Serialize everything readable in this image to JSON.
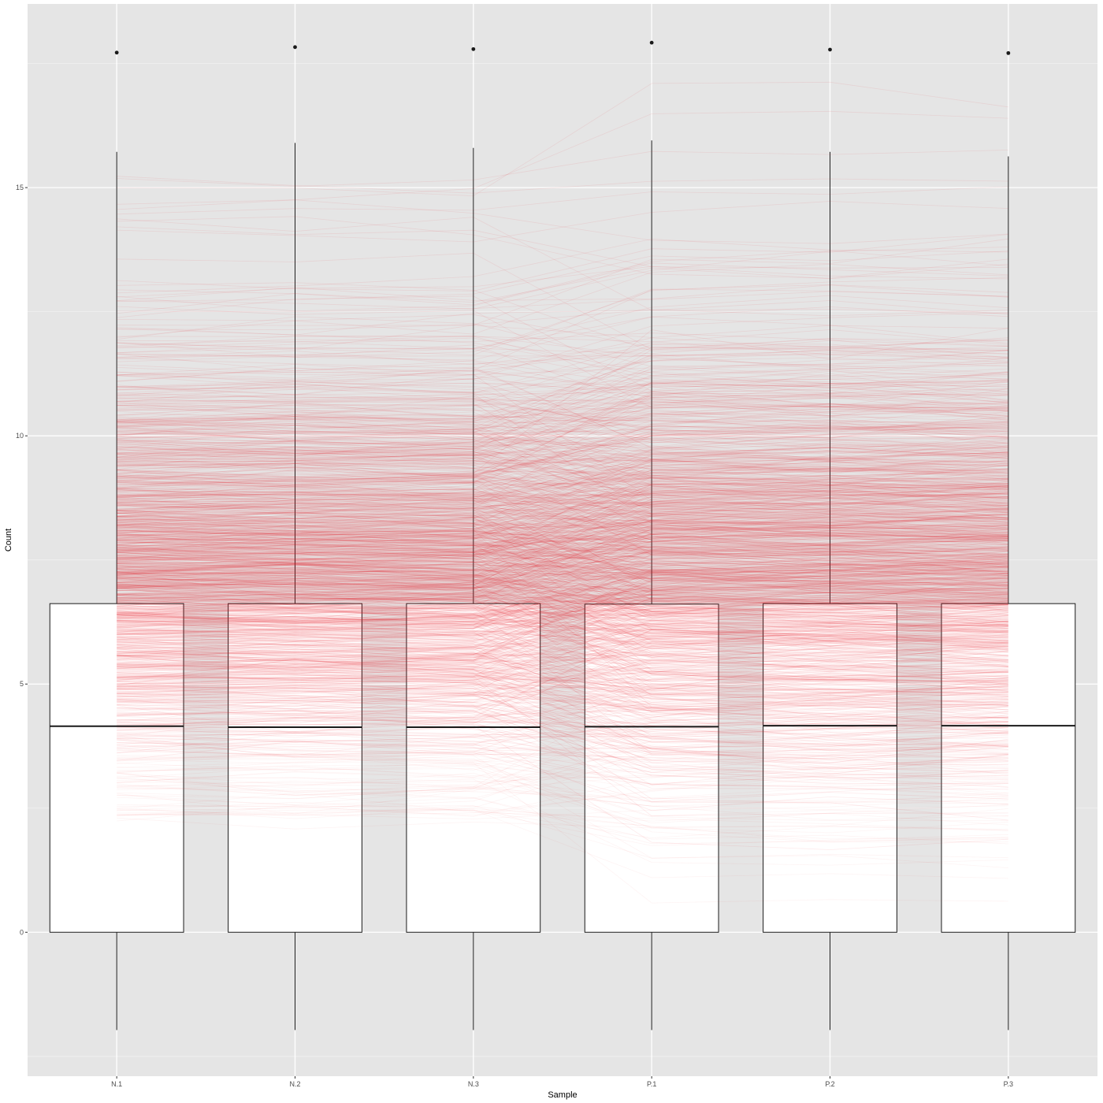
{
  "chart_data": {
    "type": "box",
    "xlabel": "Sample",
    "ylabel": "Count",
    "categories": [
      "N.1",
      "N.2",
      "N.3",
      "P.1",
      "P.2",
      "P.3"
    ],
    "ylim": [
      -2.9,
      18.7
    ],
    "yticks": [
      0,
      5,
      10,
      15
    ],
    "grid": true,
    "legend": "none",
    "boxes": [
      {
        "category": "N.1",
        "lower_whisker": -1.97,
        "q1": 0,
        "median": 4.15,
        "q3": 6.62,
        "upper_whisker": 15.72,
        "outliers": [
          17.72
        ]
      },
      {
        "category": "N.2",
        "lower_whisker": -1.97,
        "q1": 0,
        "median": 4.13,
        "q3": 6.62,
        "upper_whisker": 15.9,
        "outliers": [
          17.83
        ]
      },
      {
        "category": "N.3",
        "lower_whisker": -1.97,
        "q1": 0,
        "median": 4.13,
        "q3": 6.62,
        "upper_whisker": 15.8,
        "outliers": [
          17.79
        ]
      },
      {
        "category": "P.1",
        "lower_whisker": -1.97,
        "q1": 0,
        "median": 4.14,
        "q3": 6.61,
        "upper_whisker": 15.95,
        "outliers": [
          17.92
        ]
      },
      {
        "category": "P.2",
        "lower_whisker": -1.97,
        "q1": 0,
        "median": 4.16,
        "q3": 6.62,
        "upper_whisker": 15.72,
        "outliers": [
          17.78
        ]
      },
      {
        "category": "P.3",
        "lower_whisker": -1.97,
        "q1": 0,
        "median": 4.16,
        "q3": 6.62,
        "upper_whisker": 15.63,
        "outliers": [
          17.71
        ]
      }
    ],
    "profile_lines": {
      "description_color": "#e8242e",
      "count_approx": 1400,
      "y_range_approx": [
        2.4,
        15.2
      ],
      "center_approx": 7.3
    },
    "colors": {
      "panel": "#e5e5e5",
      "grid_major": "#ffffff",
      "box_fill": "#ffffff",
      "box_line": "#1a1a1a",
      "lines": "#e8242e",
      "tick_text": "#4d4d4d"
    }
  }
}
